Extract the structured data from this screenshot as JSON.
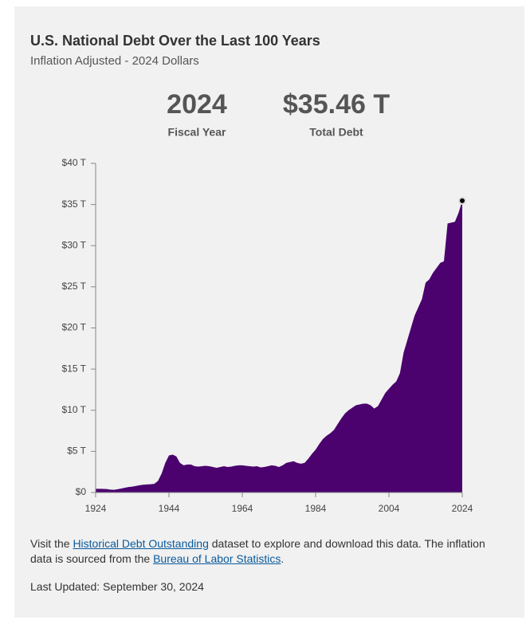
{
  "chart_data": {
    "type": "area",
    "title": "U.S. National Debt Over the Last 100 Years",
    "subtitle": "Inflation Adjusted - 2024 Dollars",
    "highlight_year": "2024",
    "highlight_year_label": "Fiscal Year",
    "highlight_value": "$35.46 T",
    "highlight_value_label": "Total Debt",
    "x": [
      1924,
      1925,
      1926,
      1927,
      1928,
      1929,
      1930,
      1931,
      1932,
      1933,
      1934,
      1935,
      1936,
      1937,
      1938,
      1939,
      1940,
      1941,
      1942,
      1943,
      1944,
      1945,
      1946,
      1947,
      1948,
      1949,
      1950,
      1951,
      1952,
      1953,
      1954,
      1955,
      1956,
      1957,
      1958,
      1959,
      1960,
      1961,
      1962,
      1963,
      1964,
      1965,
      1966,
      1967,
      1968,
      1969,
      1970,
      1971,
      1972,
      1973,
      1974,
      1975,
      1976,
      1977,
      1978,
      1979,
      1980,
      1981,
      1982,
      1983,
      1984,
      1985,
      1986,
      1987,
      1988,
      1989,
      1990,
      1991,
      1992,
      1993,
      1994,
      1995,
      1996,
      1997,
      1998,
      1999,
      2000,
      2001,
      2002,
      2003,
      2004,
      2005,
      2006,
      2007,
      2008,
      2009,
      2010,
      2011,
      2012,
      2013,
      2014,
      2015,
      2016,
      2017,
      2018,
      2019,
      2020,
      2021,
      2022,
      2023,
      2024
    ],
    "values": [
      0.45,
      0.45,
      0.44,
      0.42,
      0.35,
      0.33,
      0.4,
      0.48,
      0.58,
      0.66,
      0.72,
      0.8,
      0.88,
      0.94,
      0.98,
      1.0,
      1.05,
      1.4,
      2.3,
      3.6,
      4.5,
      4.6,
      4.4,
      3.6,
      3.3,
      3.4,
      3.4,
      3.2,
      3.15,
      3.2,
      3.25,
      3.2,
      3.1,
      3.0,
      3.1,
      3.2,
      3.1,
      3.15,
      3.25,
      3.3,
      3.3,
      3.25,
      3.2,
      3.15,
      3.2,
      3.05,
      3.1,
      3.2,
      3.3,
      3.25,
      3.1,
      3.3,
      3.6,
      3.7,
      3.8,
      3.6,
      3.5,
      3.6,
      4.1,
      4.7,
      5.2,
      5.9,
      6.5,
      6.9,
      7.2,
      7.6,
      8.3,
      9.0,
      9.6,
      10.0,
      10.3,
      10.6,
      10.7,
      10.8,
      10.8,
      10.6,
      10.2,
      10.5,
      11.3,
      12.1,
      12.6,
      13.1,
      13.5,
      14.5,
      17.0,
      18.5,
      20.0,
      21.5,
      22.5,
      23.5,
      25.5,
      25.9,
      26.7,
      27.3,
      27.9,
      28.1,
      32.7,
      32.8,
      32.9,
      34.0,
      35.46
    ],
    "color": "#4b016e",
    "xlim": [
      1924,
      2024
    ],
    "xticks": [
      1924,
      1944,
      1964,
      1984,
      2004,
      2024
    ],
    "ylim": [
      0,
      40
    ],
    "yticks": [
      {
        "value": 0,
        "label": "$0"
      },
      {
        "value": 5,
        "label": "$5 T"
      },
      {
        "value": 10,
        "label": "$10 T"
      },
      {
        "value": 15,
        "label": "$15 T"
      },
      {
        "value": 20,
        "label": "$20 T"
      },
      {
        "value": 25,
        "label": "$25 T"
      },
      {
        "value": 30,
        "label": "$30 T"
      },
      {
        "value": 35,
        "label": "$35 T"
      },
      {
        "value": 40,
        "label": "$40 T"
      }
    ]
  },
  "footer": {
    "text_1": "Visit the ",
    "link_1": "Historical Debt Outstanding",
    "text_2": " dataset to explore and download this data. The inflation data is sourced from the ",
    "link_2": "Bureau of Labor Statistics",
    "text_3": ".",
    "updated": "Last Updated: September 30, 2024"
  }
}
